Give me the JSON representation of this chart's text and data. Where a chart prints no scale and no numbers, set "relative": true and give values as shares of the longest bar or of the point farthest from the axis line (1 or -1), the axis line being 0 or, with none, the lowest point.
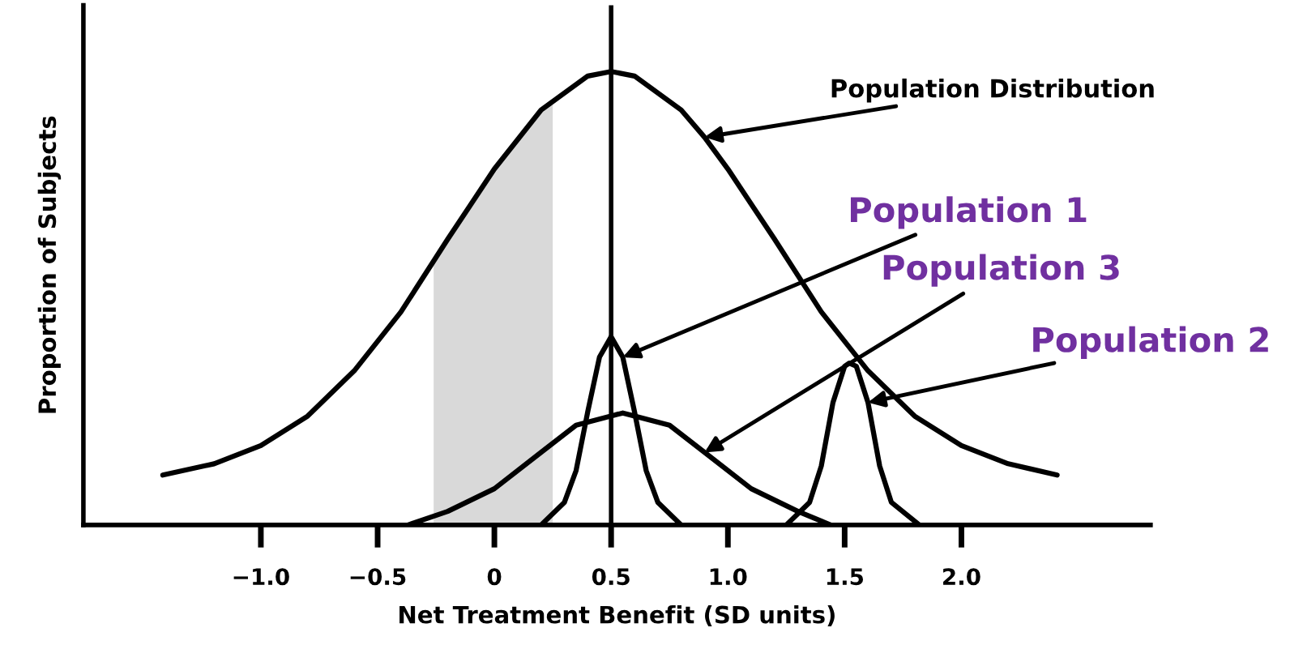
{
  "chart_data": {
    "type": "line",
    "relative": true,
    "xlabel": "Net Treatment Benefit (SD units)",
    "ylabel": "Proportion of Subjects",
    "xlim": [
      -1.76,
      2.81
    ],
    "xticks": [
      {
        "value": -1.0,
        "label": "−1.0"
      },
      {
        "value": -0.5,
        "label": "−0.5"
      },
      0,
      0.5,
      {
        "value": 1.0,
        "label": "1.0"
      },
      1.5,
      {
        "value": 2.0,
        "label": "2.0"
      }
    ],
    "tick_labels": "x",
    "grid": false,
    "legend": false,
    "marker": "none",
    "line_style": "solid",
    "series": [
      {
        "type": "area",
        "color": "#d9d9d9",
        "x": [
          -0.26,
          -0.1,
          0,
          0.1,
          0.25
        ],
        "values": [
          0.58,
          0.71,
          0.785,
          0.856,
          0.94
        ]
      },
      {
        "color": "#000000",
        "x": [
          -1.42,
          -1.2,
          -1.0,
          -0.8,
          -0.6,
          -0.4,
          -0.2,
          0,
          0.2,
          0.4,
          0.5,
          0.6,
          0.8,
          0.9,
          1.0,
          1.2,
          1.4,
          1.6,
          1.8,
          2.0,
          2.2,
          2.41
        ],
        "values": [
          0.11,
          0.135,
          0.175,
          0.24,
          0.34,
          0.47,
          0.63,
          0.785,
          0.915,
          0.99,
          1,
          0.99,
          0.915,
          0.855,
          0.785,
          0.63,
          0.47,
          0.34,
          0.24,
          0.175,
          0.135,
          0.11
        ]
      },
      {
        "color": "#000000",
        "x": [
          -0.37,
          -0.2,
          0,
          0.2,
          0.35,
          0.55,
          0.75,
          0.9,
          1.1,
          1.3,
          1.44
        ],
        "values": [
          0,
          0.03,
          0.08,
          0.16,
          0.22,
          0.247,
          0.22,
          0.16,
          0.08,
          0.03,
          0
        ]
      },
      {
        "color": "#000000",
        "x": [
          0.2,
          0.3,
          0.35,
          0.4,
          0.45,
          0.5,
          0.55,
          0.6,
          0.65,
          0.7,
          0.8
        ],
        "values": [
          0,
          0.05,
          0.12,
          0.25,
          0.37,
          0.415,
          0.37,
          0.25,
          0.12,
          0.05,
          0
        ]
      },
      {
        "color": "#000000",
        "x": [
          1.25,
          1.35,
          1.4,
          1.45,
          1.5,
          1.52,
          1.55,
          1.6,
          1.65,
          1.7,
          1.82
        ],
        "values": [
          0,
          0.05,
          0.13,
          0.27,
          0.35,
          0.357,
          0.35,
          0.27,
          0.13,
          0.05,
          0
        ]
      }
    ],
    "ref_lines": [
      {
        "axis": "x",
        "value": 0.5,
        "color": "#000000"
      }
    ],
    "annotations": [
      {
        "text": "Population Distribution",
        "x": 0.9,
        "y": 0.855
      },
      {
        "text": "Population 1",
        "x": 0.55,
        "y": 0.37
      },
      {
        "text": "Population 3",
        "x": 0.9,
        "y": 0.16
      },
      {
        "text": "Population 2",
        "x": 1.6,
        "y": 0.27
      }
    ]
  }
}
